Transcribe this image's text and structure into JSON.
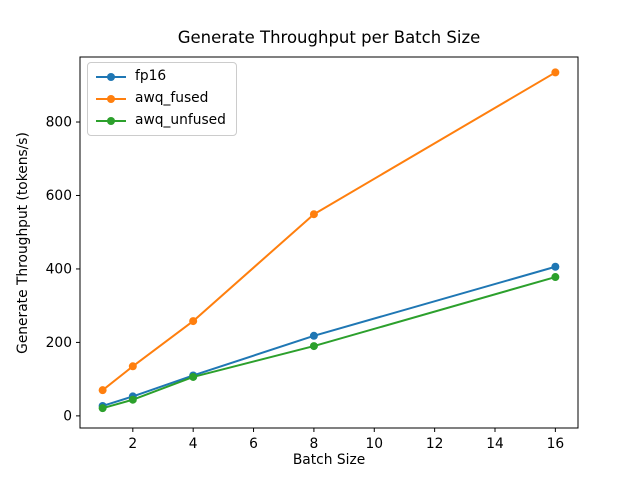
{
  "figure": {
    "background": "#ffffff",
    "text_color": "#000000",
    "spine_color": "#000000",
    "legend_border_color": "#cccccc"
  },
  "chart_data": {
    "type": "line",
    "title": "Generate Throughput per Batch Size",
    "xlabel": "Batch Size",
    "ylabel": "Generate Throughput (tokens/s)",
    "x": [
      1,
      2,
      4,
      8,
      16
    ],
    "series": [
      {
        "name": "fp16",
        "color": "#1f77b4",
        "values": [
          27,
          53,
          110,
          218,
          406
        ]
      },
      {
        "name": "awq_fused",
        "color": "#ff7f0e",
        "values": [
          70,
          135,
          258,
          549,
          935
        ]
      },
      {
        "name": "awq_unfused",
        "color": "#2ca02c",
        "values": [
          21,
          44,
          106,
          190,
          378
        ]
      }
    ],
    "xticks": [
      2,
      4,
      6,
      8,
      10,
      12,
      14,
      16
    ],
    "yticks": [
      0,
      200,
      400,
      600,
      800
    ],
    "xlim": [
      0.25,
      16.75
    ],
    "ylim": [
      -33,
      977
    ],
    "grid": false,
    "legend_position": "upper left",
    "marker": "o",
    "line_width": 2,
    "marker_radius": 4
  }
}
